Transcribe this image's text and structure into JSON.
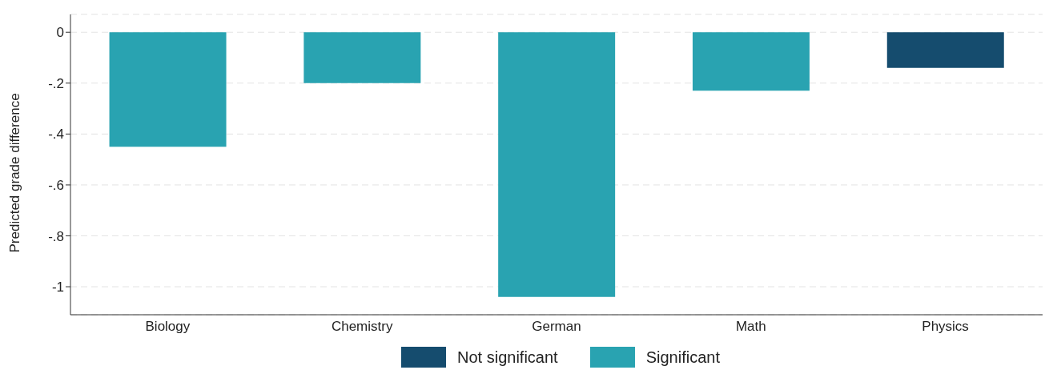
{
  "chart_data": {
    "type": "bar",
    "ylabel": "Predicted grade difference",
    "categories": [
      "Biology",
      "Chemistry",
      "German",
      "Math",
      "Physics"
    ],
    "stacked": true,
    "series": [
      {
        "name": "Not significant",
        "color": "#154c6e",
        "values": [
          null,
          null,
          null,
          null,
          -0.14
        ]
      },
      {
        "name": "Significant",
        "color": "#29a3b1",
        "values": [
          -0.45,
          -0.2,
          -1.04,
          -0.23,
          null
        ]
      }
    ],
    "ylim": [
      -1.11,
      0.07
    ],
    "yticks": [
      0,
      {
        "value": -0.2,
        "label": "-.2"
      },
      {
        "value": -0.4,
        "label": "-.4"
      },
      {
        "value": -0.6,
        "label": "-.6"
      },
      {
        "value": -0.8,
        "label": "-.8"
      },
      -1
    ],
    "grid": "y",
    "legend": "bottom"
  }
}
